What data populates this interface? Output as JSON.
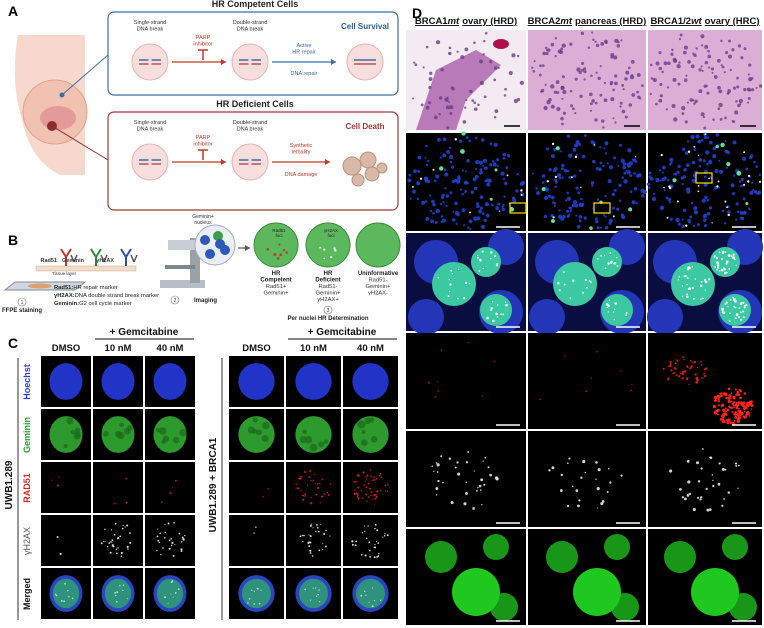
{
  "panel_a": {
    "label": "A",
    "competent": {
      "title": "HR Competent Cells",
      "ssb": [
        "Single-strand",
        "DNA break"
      ],
      "inhibitor": [
        "PARP",
        "inhibitor"
      ],
      "dsb": [
        "Double-strand",
        "DNA break"
      ],
      "repair": [
        "Active",
        "HR repair"
      ],
      "repair2": "DNA repair",
      "outcome": "Cell Survival"
    },
    "deficient": {
      "title": "HR Deficient Cells",
      "ssb": [
        "Single-strand",
        "DNA break"
      ],
      "inhibitor": [
        "PARP",
        "inhibitor"
      ],
      "dsb": [
        "Double-strand",
        "DNA break"
      ],
      "lethality": [
        "Synthetic",
        "lethality"
      ],
      "damage": "DNA damage",
      "outcome": "Cell Death"
    }
  },
  "panel_b": {
    "label": "B",
    "antibodies": [
      "Rad51",
      "Geminin",
      "γH2AX"
    ],
    "tissue": "Tissue layer",
    "steps": [
      {
        "number": "1",
        "label": "FFPE staining"
      },
      {
        "number": "2",
        "label": "Imaging"
      },
      {
        "number": "3",
        "label": "Per nuclei HR Determination"
      }
    ],
    "markers": [
      {
        "name": "Rad51:",
        "text": "HR repair marker"
      },
      {
        "name": "γH2AX:",
        "text": "DNA double strand break marker"
      },
      {
        "name": "Geminin:",
        "text": "G2 cell cycle marker"
      }
    ],
    "nucleus": [
      "Geminin+",
      "nucleus"
    ],
    "foci": [
      [
        "Rad51",
        "foci"
      ],
      [
        "γH2AX",
        "foci"
      ]
    ],
    "outcomes": [
      {
        "title": [
          "HR",
          "Competent"
        ],
        "markers": [
          "Rad51+",
          "Geminin+"
        ]
      },
      {
        "title": [
          "HR",
          "Deficient"
        ],
        "markers": [
          "Rad51-",
          "Geminin+",
          "γH2AX+"
        ]
      },
      {
        "title": [
          "Uninformative"
        ],
        "markers": [
          "Rad51-",
          "Geminin+",
          "γH2AX-"
        ]
      }
    ]
  },
  "panel_c": {
    "label": "C",
    "treatment": "+ Gemcitabine",
    "conditions": [
      "DMSO",
      "10 nM",
      "40 nM"
    ],
    "channels": [
      "Hoechst",
      "Geminin",
      "RAD51",
      "γH2AX",
      "Merged"
    ],
    "cell_lines": [
      "UWB1.289",
      "UWB1.289 + BRCA1"
    ]
  },
  "panel_d": {
    "label": "D",
    "columns": [
      {
        "gene": "BRCA1",
        "status": "mt",
        "tissue": "ovary (HRD)"
      },
      {
        "gene": "BRCA2",
        "status": "mt",
        "tissue": "pancreas (HRD)"
      },
      {
        "gene": "BRCA1/2",
        "status": "wt",
        "tissue": "ovary (HRC)"
      }
    ]
  }
}
